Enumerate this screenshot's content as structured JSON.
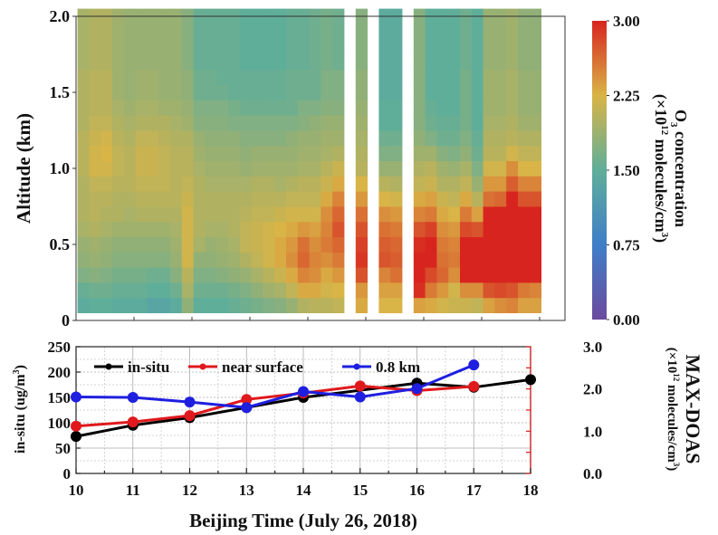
{
  "chart_data": [
    {
      "type": "heatmap",
      "title": "",
      "xlabel": "",
      "ylabel": "Altitude (km)",
      "x_start_hour": 10.2,
      "x_step_hour": 0.2,
      "x_range": [
        10,
        18.4
      ],
      "x_ticks": [
        10,
        11,
        12,
        13,
        14,
        15,
        16,
        17,
        18
      ],
      "y_range": [
        0,
        2.0
      ],
      "y_ticks": [
        "0",
        "0.5",
        "1.0",
        "1.5",
        "2.0"
      ],
      "y_tick_values": [
        0,
        0.5,
        1.0,
        1.5,
        2.0
      ],
      "y_start_km": 0.05,
      "y_step_km": 0.1,
      "colorbar": {
        "label_line1": "O3 concentration",
        "label_main": "O",
        "label_sub": "3",
        "label_rest": " concentration",
        "label_line2_prefix": "(×10",
        "label_line2_sup": "12",
        "label_line2_mid": " molecules/cm",
        "label_line2_sup2": "3",
        "label_line2_suffix": ")",
        "range": [
          0,
          3.0
        ],
        "ticks": [
          "0.00",
          "0.75",
          "1.50",
          "2.25",
          "3.00"
        ],
        "tick_values": [
          0,
          0.75,
          1.5,
          2.25,
          3.0
        ],
        "colors": [
          "#6b4a9e",
          "#3f7fc8",
          "#5fae9a",
          "#d9b446",
          "#d8241f"
        ]
      },
      "columns_note": "each column lists values from lowest altitude upward; null = missing",
      "values": [
        [
          1.45,
          1.55,
          1.7,
          1.8,
          1.85,
          1.95,
          2.0,
          2.0,
          2.0,
          2.05,
          2.05,
          2.05,
          2.0,
          2.0,
          2.0,
          2.0,
          1.95,
          1.95,
          1.95,
          1.95
        ],
        [
          1.5,
          1.6,
          1.75,
          1.85,
          1.9,
          2.0,
          2.05,
          2.05,
          2.1,
          2.2,
          2.2,
          2.15,
          2.1,
          2.05,
          2.05,
          2.05,
          2.0,
          2.0,
          2.0,
          2.0
        ],
        [
          1.5,
          1.6,
          1.7,
          1.8,
          1.85,
          1.95,
          2.0,
          2.05,
          2.1,
          2.2,
          2.25,
          2.2,
          2.1,
          2.05,
          2.05,
          2.05,
          2.0,
          2.0,
          2.0,
          2.0
        ],
        [
          1.45,
          1.55,
          1.65,
          1.75,
          1.8,
          1.9,
          2.0,
          2.0,
          2.05,
          2.1,
          2.1,
          2.05,
          2.0,
          1.95,
          1.9,
          1.9,
          1.9,
          1.9,
          1.9,
          1.9
        ],
        [
          1.45,
          1.55,
          1.65,
          1.75,
          1.8,
          1.9,
          1.95,
          2.0,
          2.05,
          2.05,
          2.05,
          2.0,
          1.95,
          1.9,
          1.85,
          1.85,
          1.85,
          1.85,
          1.85,
          1.85
        ],
        [
          1.45,
          1.55,
          1.65,
          1.75,
          1.8,
          1.9,
          2.0,
          2.05,
          2.1,
          2.15,
          2.15,
          2.1,
          2.0,
          1.95,
          1.9,
          1.9,
          1.85,
          1.85,
          1.85,
          1.85
        ],
        [
          1.35,
          1.5,
          1.6,
          1.75,
          1.8,
          1.9,
          2.0,
          2.05,
          2.1,
          2.15,
          2.15,
          2.1,
          2.0,
          1.95,
          1.9,
          1.9,
          1.85,
          1.85,
          1.85,
          1.85
        ],
        [
          1.35,
          1.5,
          1.6,
          1.75,
          1.8,
          1.9,
          2.0,
          2.05,
          2.1,
          2.1,
          2.1,
          2.05,
          2.0,
          1.9,
          1.85,
          1.85,
          1.85,
          1.85,
          1.85,
          1.85
        ],
        [
          1.45,
          1.6,
          1.75,
          1.85,
          1.9,
          1.95,
          2.0,
          2.05,
          2.05,
          2.05,
          2.05,
          2.0,
          1.95,
          1.9,
          1.85,
          1.85,
          1.85,
          1.85,
          1.85,
          1.85
        ],
        [
          1.8,
          1.95,
          2.05,
          2.2,
          2.2,
          2.2,
          2.2,
          2.15,
          2.1,
          2.05,
          2.05,
          2.0,
          1.9,
          1.85,
          1.8,
          1.8,
          1.75,
          1.75,
          1.75,
          1.75
        ],
        [
          1.5,
          1.6,
          1.7,
          1.8,
          1.95,
          2.0,
          2.0,
          2.0,
          2.0,
          1.95,
          1.9,
          1.85,
          1.75,
          1.7,
          1.6,
          1.6,
          1.55,
          1.55,
          1.55,
          1.55
        ],
        [
          1.5,
          1.6,
          1.7,
          1.8,
          1.85,
          1.95,
          2.0,
          2.0,
          1.95,
          1.9,
          1.85,
          1.8,
          1.75,
          1.7,
          1.6,
          1.6,
          1.55,
          1.55,
          1.55,
          1.55
        ],
        [
          1.5,
          1.6,
          1.75,
          1.85,
          1.9,
          1.95,
          2.0,
          2.0,
          1.95,
          1.9,
          1.85,
          1.8,
          1.75,
          1.7,
          1.6,
          1.55,
          1.55,
          1.55,
          1.55,
          1.55
        ],
        [
          1.55,
          1.65,
          1.8,
          1.9,
          1.95,
          2.0,
          2.0,
          2.0,
          1.95,
          1.9,
          1.85,
          1.8,
          1.7,
          1.65,
          1.55,
          1.55,
          1.55,
          1.55,
          1.55,
          1.55
        ],
        [
          1.6,
          1.7,
          1.85,
          2.0,
          2.1,
          2.1,
          2.05,
          2.0,
          1.95,
          1.85,
          1.8,
          1.75,
          1.7,
          1.6,
          1.55,
          1.55,
          1.5,
          1.5,
          1.5,
          1.5
        ],
        [
          1.65,
          1.8,
          1.95,
          2.1,
          2.15,
          2.15,
          2.1,
          2.05,
          2.0,
          1.9,
          1.85,
          1.75,
          1.7,
          1.6,
          1.55,
          1.55,
          1.5,
          1.5,
          1.5,
          1.5
        ],
        [
          1.7,
          1.9,
          2.05,
          2.2,
          2.2,
          2.2,
          2.1,
          2.05,
          2.0,
          1.9,
          1.85,
          1.75,
          1.7,
          1.6,
          1.55,
          1.55,
          1.5,
          1.5,
          1.5,
          1.5
        ],
        [
          1.75,
          1.95,
          2.15,
          2.3,
          2.3,
          2.25,
          2.15,
          2.05,
          1.95,
          1.9,
          1.85,
          1.75,
          1.7,
          1.6,
          1.55,
          1.55,
          1.5,
          1.5,
          1.5,
          1.5
        ],
        [
          1.85,
          2.1,
          2.3,
          2.45,
          2.4,
          2.3,
          2.2,
          2.1,
          2.0,
          1.9,
          1.85,
          1.8,
          1.7,
          1.6,
          1.6,
          1.6,
          1.55,
          1.55,
          1.55,
          1.55
        ],
        [
          2.0,
          2.3,
          2.5,
          2.65,
          2.6,
          2.4,
          2.2,
          2.1,
          2.05,
          1.95,
          1.9,
          1.85,
          1.75,
          1.7,
          1.6,
          1.6,
          1.55,
          1.55,
          1.55,
          1.55
        ],
        [
          2.05,
          2.3,
          2.45,
          2.5,
          2.45,
          2.35,
          2.2,
          2.1,
          2.05,
          1.95,
          1.9,
          1.85,
          1.8,
          1.7,
          1.6,
          1.6,
          1.6,
          1.6,
          1.6,
          1.6
        ],
        [
          2.05,
          2.2,
          2.3,
          2.45,
          2.55,
          2.5,
          2.45,
          2.3,
          2.15,
          2.05,
          1.95,
          1.9,
          1.85,
          1.75,
          1.7,
          1.7,
          1.65,
          1.65,
          1.65,
          1.65
        ],
        [
          2.1,
          2.25,
          2.4,
          2.55,
          2.65,
          2.75,
          2.65,
          2.5,
          2.3,
          2.15,
          2.0,
          1.9,
          1.85,
          1.75,
          1.7,
          1.7,
          1.6,
          1.6,
          1.6,
          1.6
        ],
        [
          null,
          null,
          null,
          null,
          null,
          null,
          null,
          null,
          null,
          null,
          null,
          null,
          null,
          null,
          null,
          null,
          null,
          null,
          null,
          null
        ],
        [
          2.3,
          2.4,
          2.75,
          2.9,
          2.85,
          2.75,
          2.6,
          2.4,
          2.25,
          2.05,
          2.0,
          1.95,
          1.9,
          1.85,
          1.8,
          1.8,
          1.75,
          1.75,
          1.75,
          1.75
        ],
        [
          null,
          null,
          null,
          null,
          null,
          null,
          null,
          null,
          null,
          null,
          null,
          null,
          null,
          null,
          null,
          null,
          null,
          null,
          null,
          null
        ],
        [
          2.25,
          2.35,
          2.5,
          2.75,
          2.7,
          2.6,
          2.45,
          2.25,
          2.05,
          1.85,
          1.7,
          1.6,
          1.5,
          1.5,
          1.45,
          1.45,
          1.45,
          1.45,
          1.45,
          1.45
        ],
        [
          2.25,
          2.35,
          2.6,
          2.7,
          2.65,
          2.55,
          2.4,
          2.2,
          2.0,
          1.85,
          1.7,
          1.6,
          1.5,
          1.5,
          1.45,
          1.45,
          1.45,
          1.45,
          1.45,
          1.45
        ],
        [
          null,
          null,
          null,
          null,
          null,
          null,
          null,
          null,
          null,
          null,
          null,
          null,
          null,
          null,
          null,
          null,
          null,
          null,
          null,
          null
        ],
        [
          2.35,
          2.95,
          3.0,
          3.0,
          2.95,
          2.75,
          2.5,
          2.3,
          2.1,
          2.0,
          1.9,
          1.8,
          1.75,
          1.75,
          1.75,
          1.75,
          1.75,
          1.75,
          1.75,
          1.75
        ],
        [
          2.3,
          2.55,
          2.8,
          3.0,
          3.0,
          2.85,
          2.55,
          2.35,
          2.15,
          2.05,
          1.9,
          1.7,
          1.6,
          1.55,
          1.5,
          1.5,
          1.5,
          1.5,
          1.5,
          1.5
        ],
        [
          2.2,
          2.4,
          2.65,
          2.6,
          2.55,
          2.45,
          2.3,
          2.15,
          2.0,
          1.9,
          1.75,
          1.6,
          1.55,
          1.5,
          1.5,
          1.5,
          1.5,
          1.5,
          1.5,
          1.5
        ],
        [
          2.15,
          2.2,
          2.45,
          2.55,
          2.5,
          2.4,
          2.25,
          2.1,
          2.0,
          1.85,
          1.7,
          1.6,
          1.55,
          1.5,
          1.5,
          1.5,
          1.5,
          1.5,
          1.5,
          1.5
        ],
        [
          2.15,
          2.45,
          3.0,
          3.0,
          3.0,
          2.8,
          2.55,
          2.3,
          2.1,
          1.95,
          1.8,
          1.7,
          1.65,
          1.65,
          1.65,
          1.65,
          1.6,
          1.6,
          1.6,
          1.6
        ],
        [
          2.1,
          2.45,
          3.0,
          3.0,
          3.0,
          2.75,
          2.35,
          2.05,
          1.85,
          1.7,
          1.6,
          1.55,
          1.5,
          1.5,
          1.5,
          1.5,
          1.5,
          1.5,
          1.5,
          1.5
        ],
        [
          2.35,
          2.75,
          3.0,
          3.0,
          3.0,
          3.0,
          3.0,
          2.6,
          2.4,
          2.2,
          2.05,
          2.0,
          1.95,
          1.9,
          1.9,
          1.9,
          1.85,
          1.85,
          1.85,
          1.85
        ],
        [
          2.45,
          2.8,
          3.0,
          3.0,
          3.0,
          3.0,
          3.0,
          2.65,
          2.4,
          2.2,
          2.05,
          2.0,
          1.95,
          1.9,
          1.9,
          1.9,
          1.85,
          1.85,
          1.85,
          1.85
        ],
        [
          2.5,
          2.75,
          3.0,
          3.0,
          3.0,
          3.0,
          3.0,
          3.0,
          2.7,
          2.45,
          2.2,
          2.05,
          2.0,
          1.95,
          1.95,
          1.95,
          1.9,
          1.9,
          1.9,
          1.9
        ],
        [
          2.35,
          2.55,
          3.0,
          3.0,
          3.0,
          3.0,
          3.0,
          2.75,
          2.5,
          2.25,
          2.1,
          2.0,
          1.9,
          1.85,
          1.85,
          1.85,
          1.8,
          1.8,
          1.8,
          1.8
        ],
        [
          2.35,
          2.5,
          3.0,
          3.0,
          3.0,
          3.0,
          3.0,
          2.75,
          2.5,
          2.25,
          2.1,
          2.0,
          1.9,
          1.85,
          1.85,
          1.85,
          1.8,
          1.8,
          1.8,
          1.8
        ]
      ]
    },
    {
      "type": "line",
      "title": "",
      "xlabel": "Beijing Time (July 26, 2018)",
      "ylabel_left_main": "in-situ (ug/m",
      "ylabel_left_sup": "3",
      "ylabel_left_end": ")",
      "ylabel_right_main": "MAX-DOAS",
      "ylabel_right_line2_prefix": "(×10",
      "ylabel_right_line2_sup": "12",
      "ylabel_right_line2_mid": " molecules/cm",
      "ylabel_right_line2_sup2": "3",
      "ylabel_right_line2_suffix": ")",
      "x_range": [
        10,
        18
      ],
      "x_ticks": [
        "10",
        "11",
        "12",
        "13",
        "14",
        "15",
        "16",
        "17",
        "18"
      ],
      "ylim_left": [
        0,
        250
      ],
      "y_ticks_left": [
        "0",
        "50",
        "100",
        "150",
        "200",
        "250"
      ],
      "ylim_right": [
        0,
        3.0
      ],
      "y_ticks_right": [
        "0.0",
        "1.0",
        "2.0",
        "3.0"
      ],
      "grid": true,
      "legend": "top",
      "series": [
        {
          "name": "in-situ",
          "axis": "left",
          "color": "#000000",
          "x": [
            10,
            11,
            12,
            13,
            14,
            16,
            17,
            18
          ],
          "values": [
            73,
            95,
            110,
            130,
            150,
            178,
            170,
            185
          ]
        },
        {
          "name": "near surface",
          "axis": "right",
          "color": "#e0191c",
          "x": [
            10,
            11,
            12,
            13,
            14,
            15,
            16,
            17
          ],
          "values": [
            1.12,
            1.22,
            1.37,
            1.75,
            1.9,
            2.07,
            1.96,
            2.06
          ]
        },
        {
          "name": "0.8 km",
          "axis": "right",
          "color": "#1f1fe0",
          "x": [
            10,
            11,
            12,
            13,
            14,
            15,
            16,
            17
          ],
          "values": [
            1.81,
            1.8,
            1.69,
            1.56,
            1.94,
            1.81,
            2.01,
            2.57
          ]
        }
      ]
    }
  ]
}
